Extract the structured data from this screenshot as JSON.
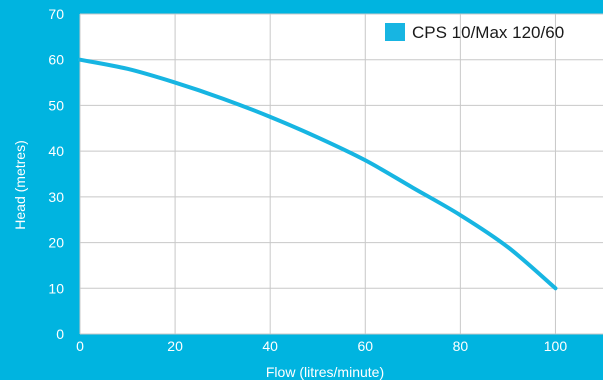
{
  "chart_data": {
    "type": "line",
    "xlabel": "Flow (litres/minute)",
    "ylabel": "Head (metres)",
    "xlim": [
      0,
      110
    ],
    "ylim": [
      0,
      70
    ],
    "xticks": [
      0,
      20,
      40,
      60,
      80,
      100
    ],
    "yticks": [
      0,
      10,
      20,
      30,
      40,
      50,
      60,
      70
    ],
    "grid": true,
    "legend_position": "top-right",
    "colors": {
      "background": "#00b4e0",
      "plot_area": "#ffffff",
      "grid": "#c8c8c8",
      "series": "#17b5e2"
    },
    "series": [
      {
        "name": "CPS 10/Max 120/60",
        "x": [
          0,
          10,
          20,
          30,
          40,
          50,
          60,
          70,
          80,
          90,
          100
        ],
        "y": [
          60,
          58,
          55,
          51.5,
          47.5,
          43,
          38,
          32,
          26,
          19,
          10
        ]
      }
    ]
  }
}
